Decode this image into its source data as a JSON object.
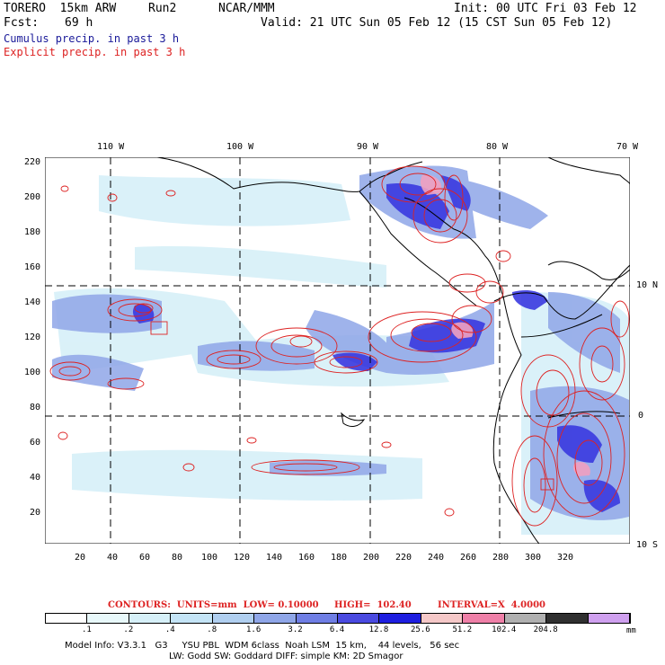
{
  "header": {
    "model": "TORERO  15km ARW",
    "run": "Run2",
    "org": "NCAR/MMM",
    "init": "Init: 00 UTC Fri 03 Feb 12",
    "fcst_label": "Fcst:",
    "fcst_hours": "69 h",
    "valid": "Valid: 21 UTC Sun 05 Feb 12 (15 CST Sun 05 Feb 12)",
    "legend_cumulus": "Cumulus precip. in past 3 h",
    "legend_explicit": "Explicit precip. in past 3 h"
  },
  "colors": {
    "cumulus": "#1a1acc",
    "explicit": "#dd2222",
    "coast": "#000000"
  },
  "top_lon_labels": [
    "110 W",
    "100 W",
    "90 W",
    "80 W",
    "70 W"
  ],
  "right_lat_labels": [
    "10 N",
    "0",
    "10 S"
  ],
  "y_ticks": [
    "220",
    "200",
    "180",
    "160",
    "140",
    "120",
    "100",
    "80",
    "60",
    "40",
    "20"
  ],
  "x_ticks": [
    "20",
    "40",
    "60",
    "80",
    "100",
    "120",
    "140",
    "160",
    "180",
    "200",
    "220",
    "240",
    "260",
    "280",
    "300",
    "320"
  ],
  "contours_line": {
    "contours": "CONTOURS:  UNITS=mm  LOW= 0.10000",
    "high": "HIGH=  102.40",
    "interval": "INTERVAL=X  4.0000"
  },
  "colorbar": {
    "labels": [
      ".1",
      ".2",
      ".4",
      ".8",
      "1.6",
      "3.2",
      "6.4",
      "12.8",
      "25.6",
      "51.2",
      "102.4",
      "204.8"
    ],
    "unit": "mm",
    "colors": [
      "#ffffff",
      "#e8f8fa",
      "#d6f0f8",
      "#c4e4f6",
      "#b0cff0",
      "#8fa6e8",
      "#6f7ee4",
      "#4a4ae0",
      "#1e1ee0",
      "#f5c8c8",
      "#ef80a8",
      "#b0b0b0",
      "#303030",
      "#cfa0ef"
    ]
  },
  "footer": {
    "line1": "Model Info: V3.3.1   G3     YSU PBL  WDM 6class  Noah LSM  15 km,    44 levels,   56 sec",
    "line2": "LW: Godd SW: Goddard DIFF: simple KM: 2D Smagor"
  }
}
